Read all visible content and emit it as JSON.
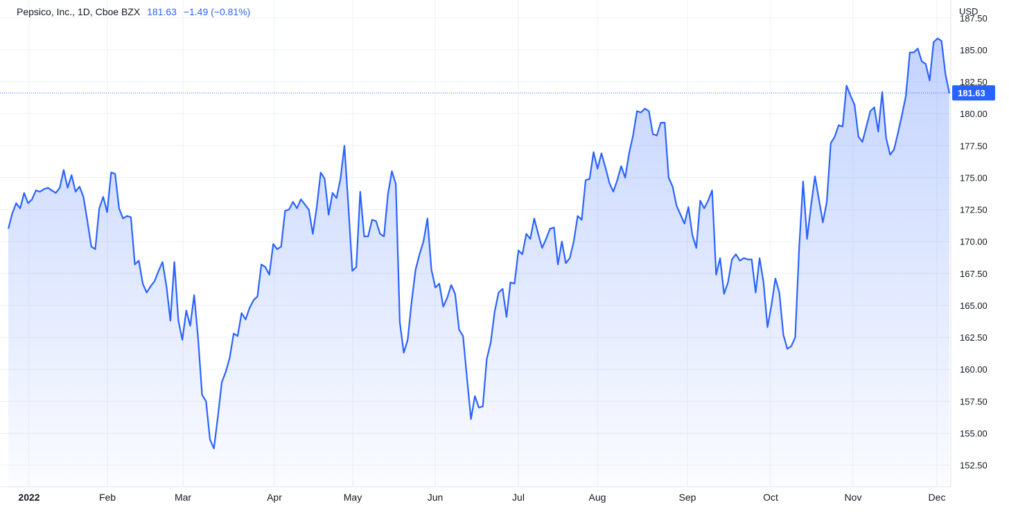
{
  "legend": {
    "symbol": "Pepsico, Inc., 1D, Cboe BZX",
    "last": "181.63",
    "change": "−1.49 (−0.81%)"
  },
  "currency": "USD",
  "colors": {
    "line": "#2962ff",
    "grid": "#eef0f3",
    "label_bg": "#2962ff"
  },
  "chart_data": {
    "type": "area",
    "x_axis_labels": [
      "2022",
      "Feb",
      "Mar",
      "Apr",
      "May",
      "Jun",
      "Jul",
      "Aug",
      "Sep",
      "Oct",
      "Nov",
      "Dec"
    ],
    "y_ticks": [
      152.5,
      155,
      157.5,
      160,
      162.5,
      165,
      167.5,
      170,
      172.5,
      175,
      177.5,
      180,
      182.5,
      185,
      187.5
    ],
    "ylim": [
      150.8,
      188.9
    ],
    "last_value": 181.63,
    "grid": true,
    "series": [
      {
        "values": [
          171.0,
          172.2,
          173.0,
          172.6,
          173.8,
          173.0,
          173.3,
          174.0,
          173.9,
          174.1,
          174.2,
          174.0,
          173.8,
          174.2,
          175.6,
          174.2,
          175.2,
          173.9,
          174.3,
          173.5,
          171.6,
          169.6,
          169.4,
          172.6,
          173.5,
          172.3,
          175.4,
          175.3,
          172.6,
          171.8,
          172.0,
          171.9,
          168.2,
          168.5,
          166.7,
          166.0,
          166.5,
          166.9,
          167.7,
          168.4,
          166.5,
          163.8,
          168.4,
          163.8,
          162.3,
          164.6,
          163.4,
          165.8,
          162.4,
          158.0,
          157.5,
          154.5,
          153.8,
          156.3,
          159.0,
          159.8,
          160.9,
          162.8,
          162.6,
          164.4,
          163.9,
          164.8,
          165.4,
          165.7,
          168.2,
          168.0,
          167.4,
          169.8,
          169.4,
          169.6,
          172.4,
          172.5,
          173.1,
          172.6,
          173.3,
          172.9,
          172.5,
          170.6,
          172.7,
          175.4,
          174.9,
          172.1,
          173.8,
          173.4,
          174.9,
          177.5,
          172.8,
          167.7,
          168.0,
          173.9,
          170.4,
          170.4,
          171.7,
          171.6,
          170.6,
          170.4,
          173.7,
          175.5,
          174.5,
          163.7,
          161.3,
          162.3,
          165.3,
          167.8,
          169.0,
          170.0,
          171.8,
          167.8,
          166.4,
          166.7,
          164.9,
          165.6,
          166.6,
          165.9,
          163.1,
          162.6,
          159.3,
          156.1,
          157.9,
          157.0,
          157.1,
          160.8,
          162.1,
          164.5,
          166.0,
          166.3,
          164.1,
          166.8,
          166.7,
          169.3,
          169.0,
          170.6,
          170.2,
          171.8,
          170.6,
          169.5,
          170.2,
          171.0,
          171.1,
          168.2,
          170.0,
          168.3,
          168.7,
          170.0,
          172.0,
          171.7,
          174.8,
          174.9,
          177.0,
          175.7,
          176.9,
          175.8,
          174.6,
          173.9,
          174.8,
          175.9,
          175.0,
          176.9,
          178.3,
          180.2,
          180.1,
          180.4,
          180.2,
          178.4,
          178.3,
          179.3,
          179.3,
          175.0,
          174.3,
          172.8,
          172.1,
          171.4,
          172.7,
          170.5,
          169.5,
          173.2,
          172.6,
          173.2,
          174.0,
          167.4,
          168.7,
          165.9,
          166.8,
          168.6,
          169.0,
          168.5,
          168.7,
          168.6,
          168.6,
          166.0,
          168.7,
          166.8,
          163.3,
          165.0,
          167.1,
          166.0,
          162.7,
          161.6,
          161.8,
          162.5,
          169.5,
          174.7,
          170.2,
          172.8,
          175.1,
          173.3,
          171.5,
          173.1,
          177.7,
          178.2,
          179.1,
          179.0,
          182.2,
          181.4,
          180.7,
          178.2,
          177.8,
          179.0,
          180.2,
          180.5,
          178.6,
          181.7,
          178.1,
          176.8,
          177.2,
          178.5,
          179.9,
          181.4,
          184.8,
          184.8,
          185.1,
          184.1,
          183.9,
          182.6,
          185.6,
          185.9,
          185.7,
          183.1,
          181.6
        ]
      }
    ]
  }
}
